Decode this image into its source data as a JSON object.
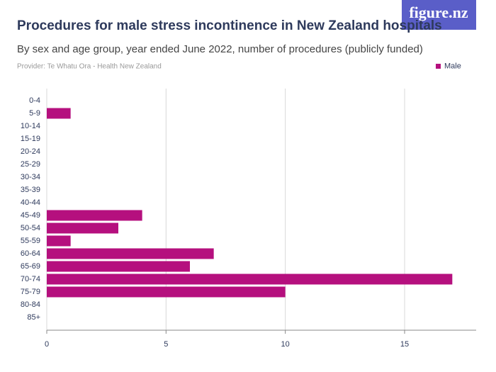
{
  "brand": "figure.nz",
  "chart_data": {
    "type": "hbar",
    "title": "Procedures for male stress incontinence in New Zealand hospitals",
    "subtitle": "By sex and age group, year ended June 2022, number of procedures (publicly funded)",
    "provider": "Provider: Te Whatu Ora - Health New Zealand",
    "categories": [
      "0-4",
      "5-9",
      "10-14",
      "15-19",
      "20-24",
      "25-29",
      "30-34",
      "35-39",
      "40-44",
      "45-49",
      "50-54",
      "55-59",
      "60-64",
      "65-69",
      "70-74",
      "75-79",
      "80-84",
      "85+"
    ],
    "series": [
      {
        "name": "Male",
        "color": "#b5107e",
        "values": [
          0,
          1,
          0,
          0,
          0,
          0,
          0,
          0,
          0,
          4,
          3,
          1,
          7,
          6,
          17,
          10,
          0,
          0
        ]
      }
    ],
    "xlim": [
      0,
      18
    ],
    "xticks": [
      0,
      5,
      10,
      15
    ],
    "grid": true,
    "legend": "top-right"
  }
}
